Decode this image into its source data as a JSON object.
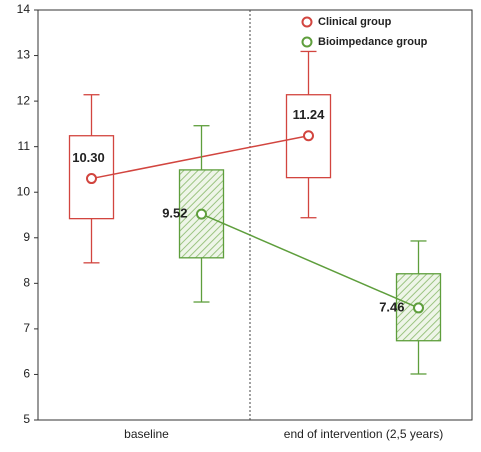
{
  "chart_data": {
    "type": "box",
    "categories": [
      "baseline",
      "end of intervention (2,5 years)"
    ],
    "ylim": [
      5,
      14
    ],
    "yticks": [
      5,
      6,
      7,
      8,
      9,
      10,
      11,
      12,
      13,
      14
    ],
    "legend": "upper right",
    "series": [
      {
        "name": "Clinical group",
        "color": "#d2453f",
        "hatch": false,
        "whisker_low": [
          8.45,
          9.44
        ],
        "q1": [
          9.42,
          10.32
        ],
        "q3": [
          11.24,
          12.14
        ],
        "whisker_high": [
          12.14,
          13.09
        ],
        "mean": [
          10.3,
          11.24
        ],
        "value_labels": [
          "10.30",
          "11.24"
        ]
      },
      {
        "name": "Bioimpedance group",
        "color": "#5e9e3c",
        "hatch": true,
        "whisker_low": [
          7.59,
          6.01
        ],
        "q1": [
          8.56,
          6.74
        ],
        "q3": [
          10.49,
          8.21
        ],
        "whisker_high": [
          11.46,
          8.93
        ],
        "mean": [
          9.52,
          7.46
        ],
        "value_labels": [
          "9.52",
          "7.46"
        ]
      }
    ]
  }
}
